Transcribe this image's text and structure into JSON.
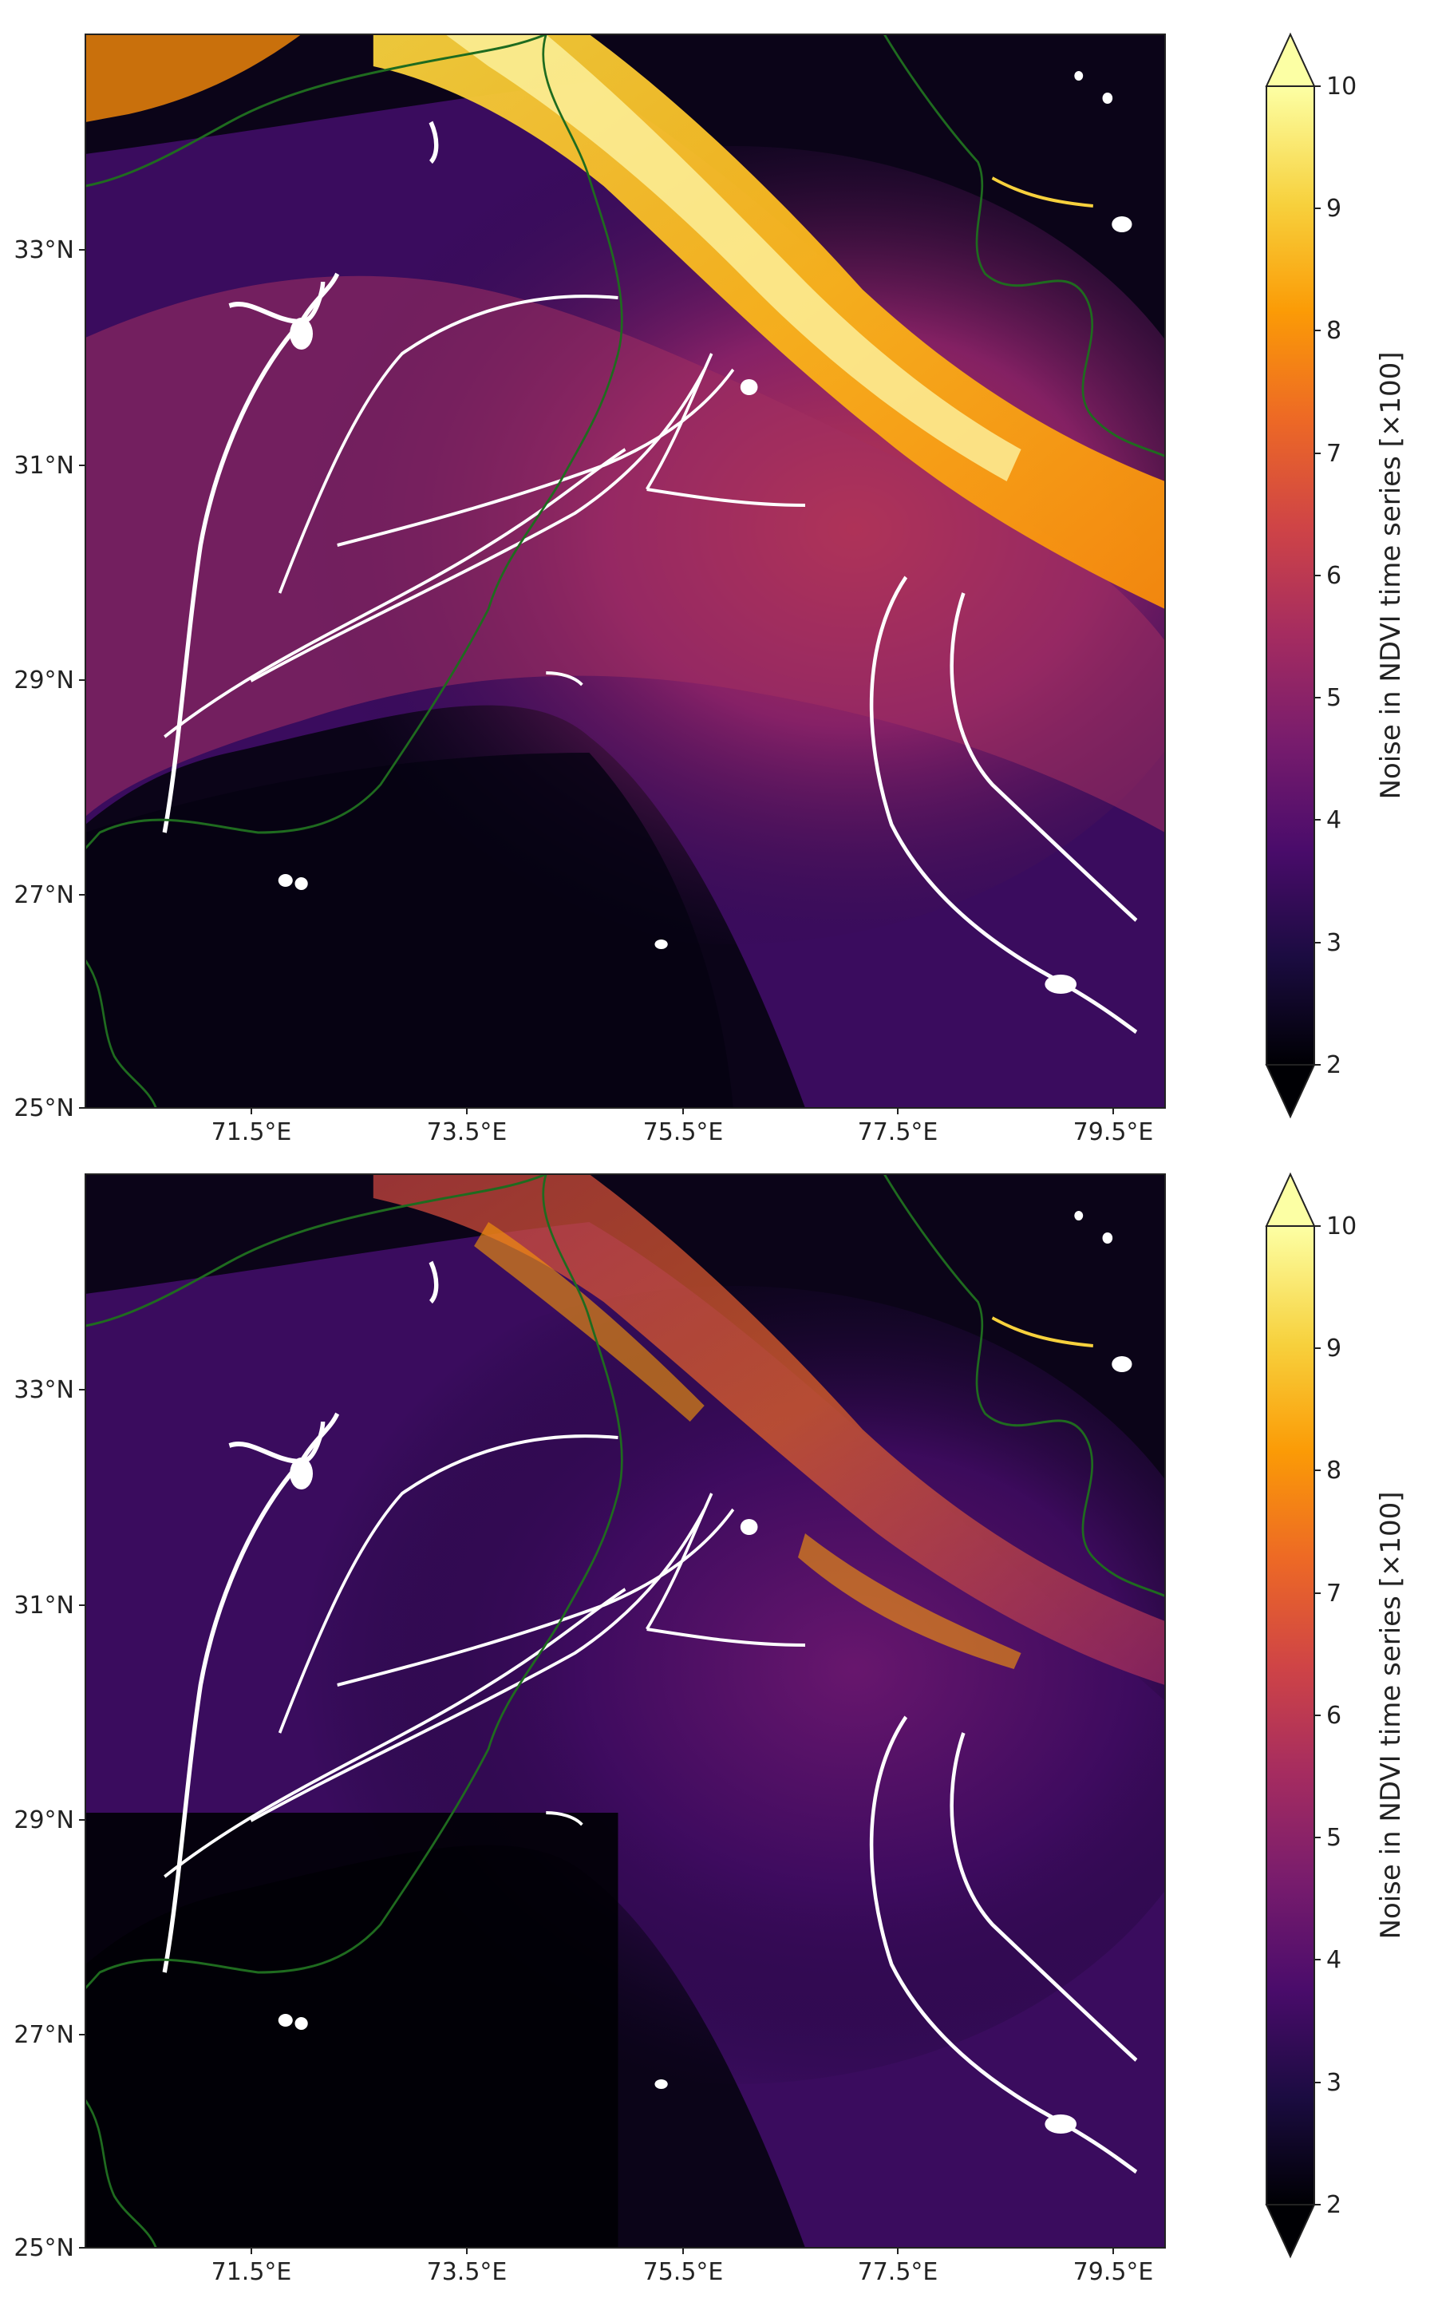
{
  "panels": [
    {
      "id": "top",
      "lat_ticks": [
        "33°N",
        "31°N",
        "29°N",
        "27°N",
        "25°N"
      ],
      "lon_ticks": [
        "71.5°E",
        "73.5°E",
        "75.5°E",
        "77.5°E",
        "79.5°E"
      ],
      "colorbar": {
        "label": "Noise in NDVI time series [×100]",
        "ticks": [
          "10",
          "9",
          "8",
          "7",
          "6",
          "5",
          "4",
          "3",
          "2"
        ],
        "min": 2,
        "max": 10,
        "extend": "both",
        "colormap": "inferno"
      }
    },
    {
      "id": "bottom",
      "lat_ticks": [
        "33°N",
        "31°N",
        "29°N",
        "27°N",
        "25°N"
      ],
      "lon_ticks": [
        "71.5°E",
        "73.5°E",
        "75.5°E",
        "77.5°E",
        "79.5°E"
      ],
      "colorbar": {
        "label": "Noise in NDVI time series [×100]",
        "ticks": [
          "10",
          "9",
          "8",
          "7",
          "6",
          "5",
          "4",
          "3",
          "2"
        ],
        "min": 2,
        "max": 10,
        "extend": "both",
        "colormap": "inferno"
      }
    }
  ],
  "colors": {
    "border_line": "#1f6b1f",
    "river": "#ffffff",
    "cmap_stops": [
      "#000004",
      "#1b0c41",
      "#4a0c6b",
      "#781c6d",
      "#a52c60",
      "#cf4446",
      "#ed6925",
      "#fb9b06",
      "#f7d13d",
      "#fcffa4"
    ]
  }
}
